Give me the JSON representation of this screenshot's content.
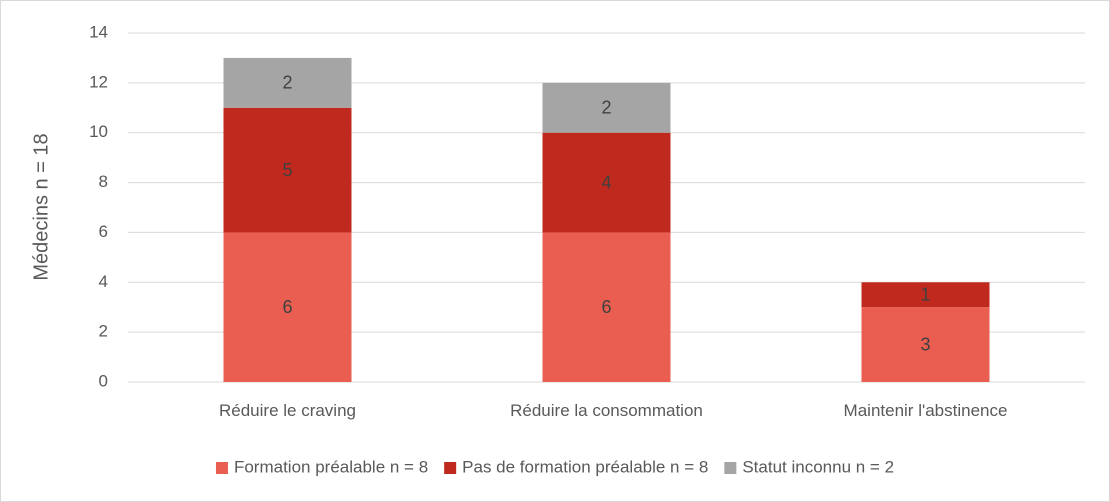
{
  "chart_data": {
    "type": "bar",
    "stacked": true,
    "categories": [
      "Réduire le craving",
      "Réduire la consommation",
      "Maintenir l'abstinence"
    ],
    "series": [
      {
        "name": "Formation préalable n = 8",
        "values": [
          6,
          6,
          3
        ],
        "color": "#E95E50"
      },
      {
        "name": "Pas de formation préalable n = 8",
        "values": [
          5,
          4,
          1
        ],
        "color": "#C0291D"
      },
      {
        "name": "Statut inconnu n = 2",
        "values": [
          2,
          2,
          0
        ],
        "color": "#A5A5A5"
      }
    ],
    "title": "",
    "xlabel": "",
    "ylabel": "Médecins n = 18",
    "ylim": [
      0,
      14
    ],
    "yticks": [
      0,
      2,
      4,
      6,
      8,
      10,
      12,
      14
    ],
    "grid": true,
    "legend": "bottom",
    "colors": {
      "grid": "#d9d9d9",
      "text": "#595959",
      "label": "#404040"
    }
  }
}
